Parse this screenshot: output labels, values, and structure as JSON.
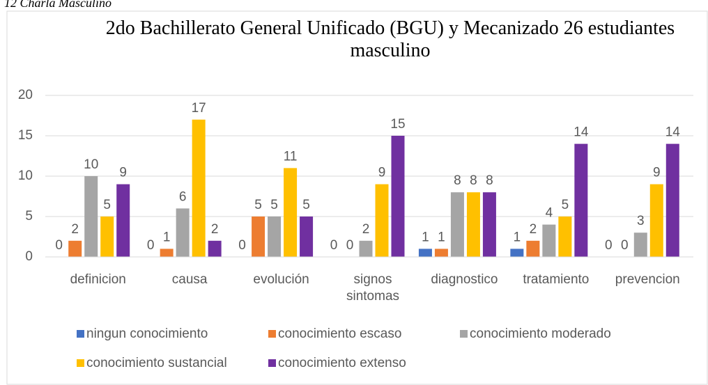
{
  "caption": "12 Charla Masculino",
  "chart_data": {
    "type": "bar",
    "title": "2do Bachillerato General Unificado (BGU) y Mecanizado 26 estudiantes masculino",
    "categories": [
      "definicion",
      "causa",
      "evolución",
      "signos sintomas",
      "diagnostico",
      "tratamiento",
      "prevencion"
    ],
    "series": [
      {
        "name": "ningun conocimiento",
        "color": "#4472c4",
        "values": [
          0,
          0,
          0,
          0,
          1,
          1,
          0
        ]
      },
      {
        "name": "conocimiento escaso",
        "color": "#ed7d31",
        "values": [
          2,
          1,
          5,
          0,
          1,
          2,
          0
        ]
      },
      {
        "name": "conocimiento moderado",
        "color": "#a5a5a5",
        "values": [
          10,
          6,
          5,
          2,
          8,
          4,
          3
        ]
      },
      {
        "name": "conocimiento sustancial",
        "color": "#ffc000",
        "values": [
          5,
          17,
          11,
          9,
          8,
          5,
          9
        ]
      },
      {
        "name": "conocimiento extenso",
        "color": "#7030a0",
        "values": [
          9,
          2,
          5,
          15,
          8,
          14,
          14
        ]
      }
    ],
    "ylim": [
      0,
      20
    ],
    "yticks": [
      0,
      5,
      10,
      15,
      20
    ],
    "grid": true,
    "legend": "bottom"
  }
}
